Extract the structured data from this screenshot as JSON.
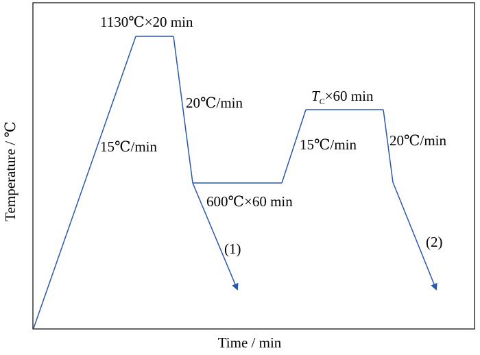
{
  "axes": {
    "x_label": "Time / min",
    "y_label": "Temperature / ℃"
  },
  "annotations": {
    "austenitize": "1130℃×20 min",
    "heat_rate_1": "15℃/min",
    "cool_rate_1": "20℃/min",
    "hold_1": "600℃×60 min",
    "route_1": "(1)",
    "heat_rate_2": "15℃/min",
    "hold_2_symbol": "T",
    "hold_2_subscript": "C",
    "hold_2_rest": "×60 min",
    "cool_rate_2": "20℃/min",
    "route_2": "(2)"
  },
  "colors": {
    "curve": "#2a57a6",
    "frame": "#000000"
  }
}
